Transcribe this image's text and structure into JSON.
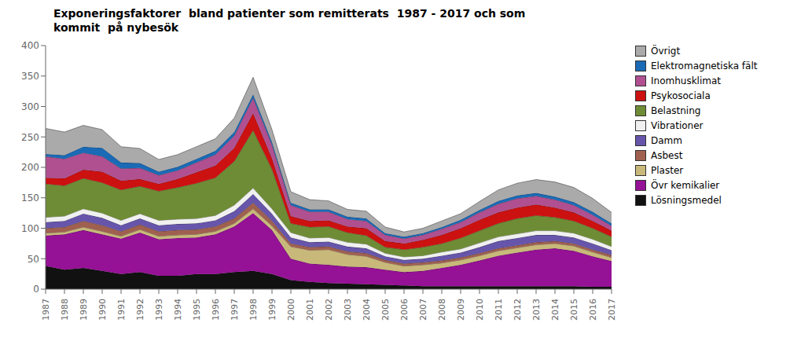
{
  "chart_data": {
    "type": "area",
    "stacked": true,
    "grid": false,
    "legend": "right",
    "title": "Exponeringsfaktorer  bland patienter som remitterats  1987 - 2017 och som\nkommit  på nybesök",
    "x": [
      1987,
      1988,
      1989,
      1990,
      1991,
      1992,
      1993,
      1994,
      1995,
      1996,
      1997,
      1998,
      1999,
      2000,
      2001,
      2002,
      2003,
      2004,
      2005,
      2006,
      2007,
      2008,
      2009,
      2010,
      2011,
      2012,
      2013,
      2014,
      2015,
      2016,
      2017
    ],
    "xlim": [
      1987,
      2017
    ],
    "xticks": [
      1987,
      1988,
      1989,
      1990,
      1991,
      1992,
      1993,
      1994,
      1995,
      1996,
      1997,
      1998,
      1999,
      2000,
      2001,
      2002,
      2003,
      2004,
      2005,
      2006,
      2007,
      2008,
      2009,
      2010,
      2011,
      2012,
      2013,
      2014,
      2015,
      2016,
      2017
    ],
    "ylim": [
      0,
      400
    ],
    "yticks": [
      0,
      50,
      100,
      150,
      200,
      250,
      300,
      350,
      400
    ],
    "series": [
      {
        "name": "Lösningsmedel",
        "color": "#111111",
        "values": [
          38,
          32,
          35,
          30,
          25,
          28,
          22,
          22,
          25,
          25,
          28,
          30,
          25,
          15,
          12,
          10,
          9,
          8,
          7,
          6,
          5,
          5,
          5,
          5,
          5,
          5,
          5,
          5,
          5,
          4,
          4
        ]
      },
      {
        "name": "Övr kemikalier",
        "color": "#951195",
        "values": [
          50,
          58,
          62,
          60,
          58,
          65,
          60,
          62,
          60,
          65,
          75,
          95,
          72,
          35,
          30,
          30,
          28,
          28,
          25,
          22,
          25,
          30,
          35,
          42,
          50,
          55,
          60,
          62,
          58,
          50,
          42
        ]
      },
      {
        "name": "Plaster",
        "color": "#c8b87a",
        "values": [
          4,
          4,
          5,
          5,
          4,
          5,
          5,
          5,
          5,
          5,
          5,
          7,
          7,
          20,
          22,
          25,
          20,
          18,
          12,
          10,
          10,
          8,
          8,
          8,
          8,
          8,
          8,
          8,
          8,
          7,
          6
        ]
      },
      {
        "name": "Asbest",
        "color": "#a06050",
        "values": [
          8,
          8,
          10,
          10,
          8,
          8,
          8,
          8,
          8,
          8,
          8,
          10,
          8,
          5,
          5,
          5,
          5,
          5,
          4,
          4,
          4,
          4,
          4,
          4,
          4,
          4,
          4,
          4,
          4,
          4,
          4
        ]
      },
      {
        "name": "Damm",
        "color": "#6655aa",
        "values": [
          10,
          10,
          12,
          12,
          10,
          10,
          10,
          10,
          10,
          10,
          12,
          14,
          12,
          10,
          8,
          8,
          8,
          8,
          6,
          6,
          6,
          8,
          8,
          10,
          12,
          12,
          12,
          10,
          10,
          10,
          8
        ]
      },
      {
        "name": "Vibrationer",
        "color": "#f0f0f0",
        "values": [
          8,
          8,
          8,
          8,
          8,
          8,
          8,
          8,
          8,
          8,
          10,
          10,
          8,
          8,
          7,
          7,
          7,
          7,
          5,
          5,
          5,
          6,
          6,
          7,
          7,
          7,
          7,
          7,
          7,
          7,
          6
        ]
      },
      {
        "name": "Belastning",
        "color": "#6e8c35",
        "values": [
          55,
          50,
          50,
          50,
          50,
          45,
          48,
          52,
          58,
          62,
          72,
          95,
          65,
          15,
          18,
          18,
          16,
          14,
          10,
          12,
          14,
          14,
          18,
          20,
          22,
          25,
          25,
          22,
          20,
          18,
          16
        ]
      },
      {
        "name": "Psykosociala",
        "color": "#cc1111",
        "values": [
          10,
          12,
          14,
          18,
          15,
          12,
          12,
          14,
          18,
          20,
          22,
          28,
          18,
          12,
          10,
          10,
          10,
          12,
          10,
          10,
          12,
          14,
          16,
          18,
          18,
          18,
          18,
          16,
          14,
          12,
          10
        ]
      },
      {
        "name": "Inomhusklimat",
        "color": "#b05090",
        "values": [
          35,
          32,
          28,
          25,
          20,
          18,
          14,
          14,
          16,
          18,
          20,
          25,
          22,
          18,
          15,
          14,
          12,
          12,
          10,
          8,
          8,
          10,
          10,
          12,
          14,
          15,
          14,
          13,
          12,
          10,
          8
        ]
      },
      {
        "name": "Elektromagnetiska fält",
        "color": "#1a6ab5",
        "values": [
          4,
          6,
          10,
          14,
          10,
          8,
          6,
          6,
          6,
          6,
          6,
          6,
          5,
          4,
          4,
          4,
          4,
          4,
          3,
          3,
          3,
          3,
          4,
          4,
          5,
          5,
          5,
          5,
          5,
          5,
          4
        ]
      },
      {
        "name": "Övrigt",
        "color": "#aaaaaa",
        "values": [
          42,
          38,
          35,
          30,
          26,
          24,
          20,
          20,
          20,
          20,
          23,
          28,
          20,
          18,
          16,
          14,
          12,
          12,
          10,
          8,
          8,
          10,
          10,
          14,
          18,
          20,
          22,
          24,
          24,
          22,
          18
        ]
      }
    ]
  }
}
